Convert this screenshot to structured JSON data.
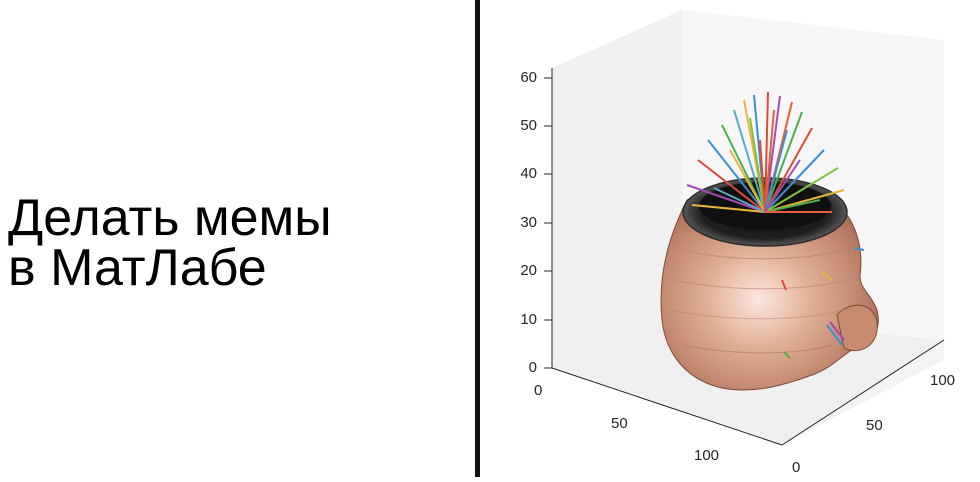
{
  "caption": {
    "line1": "Делать мемы",
    "line2": "в МатЛабе"
  },
  "plot": {
    "type": "3d-surface",
    "z_ticks": [
      "0",
      "10",
      "20",
      "30",
      "40",
      "50",
      "60"
    ],
    "x_ticks": [
      "0",
      "50",
      "100"
    ],
    "y_ticks": [
      "0",
      "50",
      "100"
    ],
    "colors": {
      "divider": "#111111",
      "skin": "#d9a086",
      "cut_surface": "#3a3a3a"
    }
  }
}
